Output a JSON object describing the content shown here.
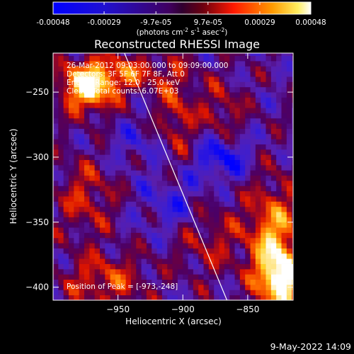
{
  "title": "Reconstructed RHESSI Image",
  "footer_date": "9-May-2022 14:09",
  "colorbar": {
    "tick_labels": [
      "-0.00048",
      "-0.00029",
      "-9.7e-05",
      "9.7e-05",
      "0.00029",
      "0.00048"
    ],
    "tick_values": [
      -0.00048,
      -0.00029,
      -9.7e-05,
      9.7e-05,
      0.00029,
      0.00048
    ],
    "range": [
      -0.00048,
      0.00048
    ],
    "unit_parts": [
      "(photons cm",
      "-2",
      " s",
      "-1",
      " asec",
      "-2",
      ")"
    ]
  },
  "info_lines": [
    "26-Mar-2012 09:03:00.000 to 09:09:00.000",
    "Detectors: 3F 5F 6F 7F 8F, Att 0",
    "Energy Range: 12.0 - 25.0 keV",
    "Clean. Total counts: 6.07E+03"
  ],
  "peak_text": "Position of Peak = [-973,-248]",
  "chart_data": {
    "type": "heatmap",
    "title": "Reconstructed RHESSI Image",
    "xlabel": "Heliocentric X (arcsec)",
    "ylabel": "Heliocentric Y (arcsec)",
    "xlim": [
      -1000,
      -815
    ],
    "ylim": [
      -410,
      -220
    ],
    "xticks": [
      -950,
      -900,
      -850
    ],
    "xtick_labels": [
      "−950",
      "−900",
      "−850"
    ],
    "yticks": [
      -250,
      -300,
      -350,
      -400
    ],
    "ytick_labels": [
      "−250",
      "−300",
      "−350",
      "−400"
    ],
    "limb_line": [
      [
        -945,
        -220
      ],
      [
        -866,
        -410
      ]
    ],
    "peak": [
      -973,
      -248
    ],
    "colors": {
      "background": "#000000",
      "neg_max": "#0000ff",
      "zero": "#4a0068",
      "mid": "#ff2200",
      "high": "#ffa000",
      "max": "#ffffff"
    }
  }
}
